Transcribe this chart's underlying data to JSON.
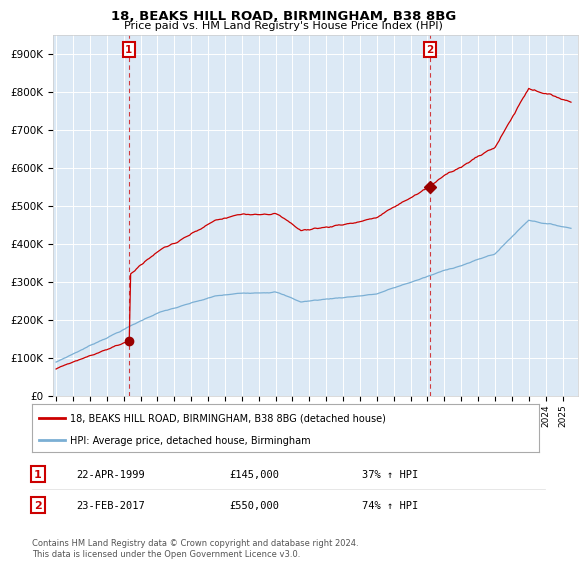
{
  "title": "18, BEAKS HILL ROAD, BIRMINGHAM, B38 8BG",
  "subtitle": "Price paid vs. HM Land Registry's House Price Index (HPI)",
  "legend_line1": "18, BEAKS HILL ROAD, BIRMINGHAM, B38 8BG (detached house)",
  "legend_line2": "HPI: Average price, detached house, Birmingham",
  "transaction1_label": "1",
  "transaction1_date": "22-APR-1999",
  "transaction1_price": 145000,
  "transaction1_price_str": "£145,000",
  "transaction1_hpi": "37% ↑ HPI",
  "transaction1_x": 1999.31,
  "transaction2_label": "2",
  "transaction2_date": "23-FEB-2017",
  "transaction2_price": 550000,
  "transaction2_price_str": "£550,000",
  "transaction2_hpi": "74% ↑ HPI",
  "transaction2_x": 2017.14,
  "footer": "Contains HM Land Registry data © Crown copyright and database right 2024.\nThis data is licensed under the Open Government Licence v3.0.",
  "bg_color": "#dce9f5",
  "red_line_color": "#cc0000",
  "blue_line_color": "#7bafd4",
  "grid_color": "#ffffff",
  "ylim_max": 950000,
  "xstart": 1994.8,
  "xend": 2025.9
}
